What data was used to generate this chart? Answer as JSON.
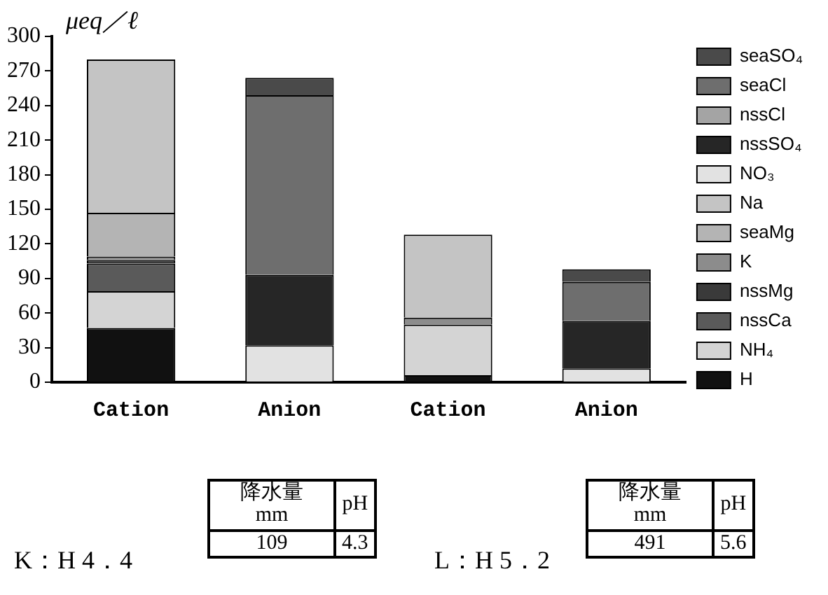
{
  "chart_data": {
    "type": "bar",
    "stacked": true,
    "ylabel": "μeq／ℓ",
    "categories": [
      "Cation",
      "Anion",
      "Cation",
      "Anion"
    ],
    "ylim": [
      0,
      300
    ],
    "yticks": [
      0,
      30,
      60,
      90,
      120,
      150,
      180,
      210,
      240,
      270,
      300
    ],
    "grid": false,
    "legend": "right",
    "series": [
      {
        "name": "H",
        "color": "#111111",
        "values": [
          47,
          null,
          6,
          null
        ]
      },
      {
        "name": "NH₄",
        "color": "#d4d4d4",
        "values": [
          32,
          null,
          44,
          null
        ]
      },
      {
        "name": "nssCa",
        "color": "#5a5a5a",
        "values": [
          24,
          null,
          null,
          null
        ]
      },
      {
        "name": "nssMg",
        "color": "#3a3a3a",
        "values": [
          3,
          null,
          null,
          null
        ]
      },
      {
        "name": "K",
        "color": "#8c8c8c",
        "values": [
          3,
          null,
          6,
          null
        ]
      },
      {
        "name": "seaMg",
        "color": "#b4b4b4",
        "values": [
          38,
          null,
          null,
          null
        ]
      },
      {
        "name": "Na",
        "color": "#c4c4c4",
        "values": [
          133,
          null,
          72,
          null
        ]
      },
      {
        "name": "NO₃",
        "color": "#e2e2e2",
        "values": [
          null,
          32,
          null,
          12
        ]
      },
      {
        "name": "nssSO₄",
        "color": "#262626",
        "values": [
          null,
          61,
          null,
          41
        ]
      },
      {
        "name": "nssCl",
        "color": "#a4a4a4",
        "values": [
          null,
          0,
          null,
          0
        ]
      },
      {
        "name": "seaCl",
        "color": "#6e6e6e",
        "values": [
          null,
          156,
          null,
          34
        ]
      },
      {
        "name": "seaSO₄",
        "color": "#4a4a4a",
        "values": [
          null,
          15,
          null,
          11
        ]
      }
    ],
    "annotations": [
      "K：H 4．4",
      "降水量\nmm",
      "pH",
      "109",
      "4.3",
      "L：H 5．2",
      "降水量\nmm",
      "pH",
      "491",
      "5.6"
    ]
  }
}
